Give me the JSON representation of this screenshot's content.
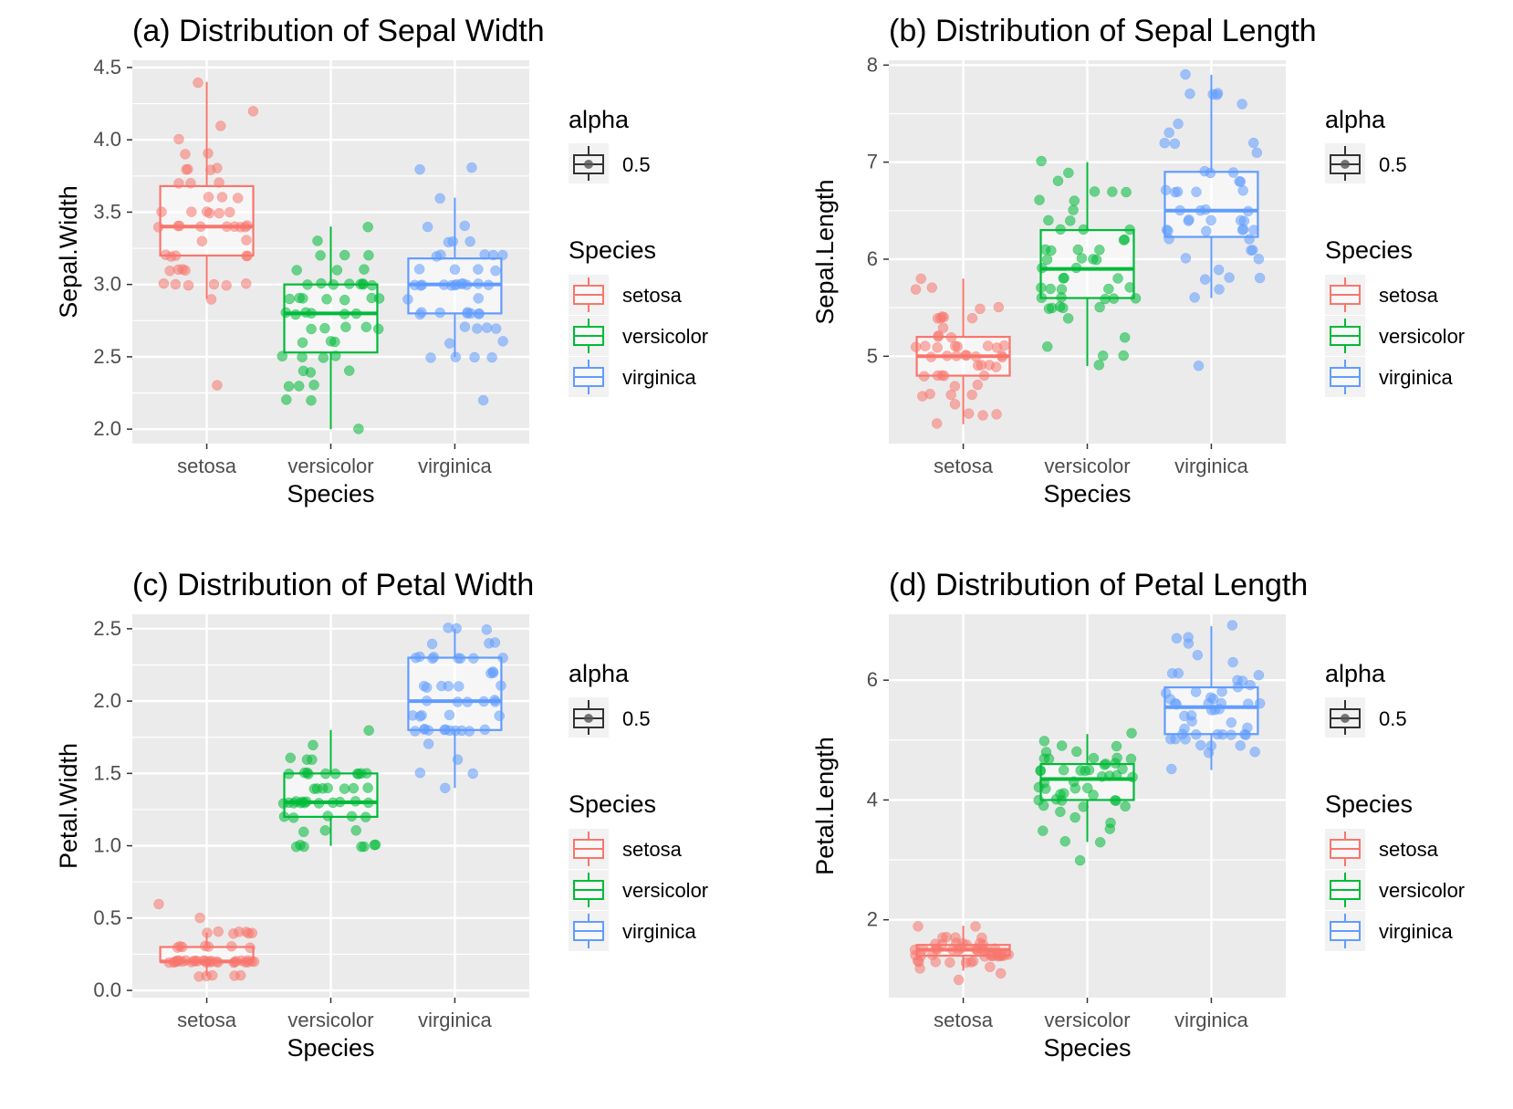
{
  "colors": {
    "setosa": "#F8766D",
    "versicolor": "#00BA38",
    "virginica": "#619CFF",
    "panel_bg": "#EBEBEB",
    "grid": "#FFFFFF"
  },
  "legend": {
    "alpha_title": "alpha",
    "alpha_value": "0.5",
    "species_title": "Species",
    "items": [
      "setosa",
      "versicolor",
      "virginica"
    ]
  },
  "chart_data": [
    {
      "type": "box",
      "title": "(a) Distribution of Sepal Width",
      "xlabel": "Species",
      "ylabel": "Sepal.Width",
      "categories": [
        "setosa",
        "versicolor",
        "virginica"
      ],
      "ylim": [
        1.9,
        4.55
      ],
      "yticks": [
        2.0,
        2.5,
        3.0,
        3.5,
        4.0,
        4.5
      ],
      "ytick_labels": [
        "2.0",
        "2.5",
        "3.0",
        "3.5",
        "4.0",
        "4.5"
      ],
      "grid": true,
      "legend_position": "right",
      "boxes": [
        {
          "species": "setosa",
          "q1": 3.2,
          "median": 3.4,
          "q3": 3.68,
          "whisker_low": 2.9,
          "whisker_high": 4.4
        },
        {
          "species": "versicolor",
          "q1": 2.53,
          "median": 2.8,
          "q3": 3.0,
          "whisker_low": 2.0,
          "whisker_high": 3.4
        },
        {
          "species": "virginica",
          "q1": 2.8,
          "median": 3.0,
          "q3": 3.18,
          "whisker_low": 2.5,
          "whisker_high": 3.6
        }
      ],
      "points": {
        "setosa": [
          3.5,
          3.0,
          3.2,
          3.1,
          3.6,
          3.9,
          3.4,
          3.4,
          2.9,
          3.1,
          3.7,
          3.4,
          3.0,
          3.0,
          4.0,
          4.4,
          3.9,
          3.5,
          3.8,
          3.8,
          3.4,
          3.7,
          3.6,
          3.3,
          3.4,
          3.0,
          3.4,
          3.5,
          3.4,
          3.2,
          3.1,
          3.4,
          4.1,
          4.2,
          3.1,
          3.2,
          3.5,
          3.6,
          3.0,
          3.4,
          3.5,
          2.3,
          3.2,
          3.5,
          3.8,
          3.0,
          3.8,
          3.2,
          3.7,
          3.3
        ],
        "versicolor": [
          3.2,
          3.2,
          3.1,
          2.3,
          2.8,
          2.8,
          3.3,
          2.4,
          2.9,
          2.7,
          2.0,
          3.0,
          2.2,
          2.9,
          2.9,
          3.1,
          3.0,
          2.7,
          2.2,
          2.5,
          3.2,
          2.8,
          2.5,
          2.8,
          2.9,
          3.0,
          2.8,
          3.0,
          2.9,
          2.6,
          2.4,
          2.4,
          2.7,
          2.7,
          3.0,
          3.4,
          3.1,
          2.3,
          3.0,
          2.5,
          2.6,
          3.0,
          2.6,
          2.3,
          2.7,
          3.0,
          2.9,
          2.9,
          2.5,
          2.8
        ],
        "virginica": [
          3.3,
          2.7,
          3.0,
          2.9,
          3.0,
          3.0,
          2.5,
          2.9,
          2.5,
          3.6,
          3.2,
          2.7,
          3.0,
          2.5,
          2.8,
          3.2,
          3.0,
          3.8,
          2.6,
          2.2,
          3.2,
          2.8,
          2.8,
          2.7,
          3.3,
          3.2,
          2.8,
          3.0,
          2.8,
          3.0,
          2.8,
          3.8,
          2.8,
          2.8,
          2.6,
          3.0,
          3.4,
          3.1,
          3.0,
          3.1,
          3.1,
          3.1,
          2.7,
          3.2,
          3.3,
          3.0,
          2.5,
          3.0,
          3.4,
          3.0
        ]
      }
    },
    {
      "type": "box",
      "title": "(b) Distribution of Sepal Length",
      "xlabel": "Species",
      "ylabel": "Sepal.Length",
      "categories": [
        "setosa",
        "versicolor",
        "virginica"
      ],
      "ylim": [
        4.1,
        8.05
      ],
      "yticks": [
        5,
        6,
        7,
        8
      ],
      "ytick_labels": [
        "5",
        "6",
        "7",
        "8"
      ],
      "grid": true,
      "legend_position": "right",
      "boxes": [
        {
          "species": "setosa",
          "q1": 4.8,
          "median": 5.0,
          "q3": 5.2,
          "whisker_low": 4.3,
          "whisker_high": 5.8
        },
        {
          "species": "versicolor",
          "q1": 5.6,
          "median": 5.9,
          "q3": 6.3,
          "whisker_low": 4.9,
          "whisker_high": 7.0
        },
        {
          "species": "virginica",
          "q1": 6.23,
          "median": 6.5,
          "q3": 6.9,
          "whisker_low": 5.6,
          "whisker_high": 7.9
        }
      ],
      "points": {
        "setosa": [
          5.1,
          4.9,
          4.7,
          4.6,
          5.0,
          5.4,
          4.6,
          5.0,
          4.4,
          4.9,
          5.4,
          4.8,
          4.8,
          4.3,
          5.8,
          5.7,
          5.4,
          5.1,
          5.7,
          5.1,
          5.4,
          5.1,
          4.6,
          5.1,
          4.8,
          5.0,
          5.0,
          5.2,
          5.2,
          4.7,
          4.8,
          5.4,
          5.2,
          5.5,
          4.9,
          5.0,
          5.5,
          4.9,
          4.4,
          5.1,
          5.0,
          4.5,
          4.4,
          5.0,
          5.1,
          4.8,
          5.1,
          4.6,
          5.3,
          5.0
        ],
        "versicolor": [
          7.0,
          6.4,
          6.9,
          5.5,
          6.5,
          5.7,
          6.3,
          4.9,
          6.6,
          5.2,
          5.0,
          5.9,
          6.0,
          6.1,
          5.6,
          6.7,
          5.6,
          5.8,
          6.2,
          5.6,
          5.9,
          6.1,
          6.3,
          6.1,
          6.4,
          6.6,
          6.8,
          6.7,
          6.0,
          5.7,
          5.5,
          5.5,
          5.8,
          6.0,
          5.4,
          6.0,
          6.7,
          6.3,
          5.6,
          5.5,
          5.5,
          6.1,
          5.8,
          5.0,
          5.6,
          5.7,
          5.7,
          6.2,
          5.1,
          5.7
        ],
        "virginica": [
          6.3,
          5.8,
          7.1,
          6.3,
          6.5,
          7.6,
          4.9,
          7.3,
          6.7,
          7.2,
          6.5,
          6.4,
          6.8,
          5.7,
          5.8,
          6.4,
          6.5,
          7.7,
          7.7,
          6.0,
          6.9,
          5.6,
          7.7,
          6.3,
          6.7,
          7.2,
          6.2,
          6.1,
          6.4,
          7.2,
          7.4,
          7.9,
          6.4,
          6.3,
          6.1,
          7.7,
          6.3,
          6.4,
          6.0,
          6.9,
          6.7,
          6.9,
          5.8,
          6.8,
          6.7,
          6.7,
          6.3,
          6.5,
          6.2,
          5.9
        ]
      }
    },
    {
      "type": "box",
      "title": "(c) Distribution of Petal Width",
      "xlabel": "Species",
      "ylabel": "Petal.Width",
      "categories": [
        "setosa",
        "versicolor",
        "virginica"
      ],
      "ylim": [
        -0.05,
        2.6
      ],
      "yticks": [
        0.0,
        0.5,
        1.0,
        1.5,
        2.0,
        2.5
      ],
      "ytick_labels": [
        "0.0",
        "0.5",
        "1.0",
        "1.5",
        "2.0",
        "2.5"
      ],
      "grid": true,
      "legend_position": "right",
      "boxes": [
        {
          "species": "setosa",
          "q1": 0.2,
          "median": 0.2,
          "q3": 0.3,
          "whisker_low": 0.1,
          "whisker_high": 0.4
        },
        {
          "species": "versicolor",
          "q1": 1.2,
          "median": 1.3,
          "q3": 1.5,
          "whisker_low": 1.0,
          "whisker_high": 1.8
        },
        {
          "species": "virginica",
          "q1": 1.8,
          "median": 2.0,
          "q3": 2.3,
          "whisker_low": 1.4,
          "whisker_high": 2.5
        }
      ],
      "points": {
        "setosa": [
          0.2,
          0.2,
          0.2,
          0.2,
          0.2,
          0.4,
          0.3,
          0.2,
          0.2,
          0.1,
          0.2,
          0.2,
          0.1,
          0.1,
          0.2,
          0.4,
          0.4,
          0.3,
          0.3,
          0.3,
          0.2,
          0.4,
          0.2,
          0.5,
          0.2,
          0.2,
          0.4,
          0.2,
          0.2,
          0.2,
          0.2,
          0.4,
          0.1,
          0.2,
          0.2,
          0.2,
          0.2,
          0.1,
          0.2,
          0.2,
          0.3,
          0.3,
          0.2,
          0.6,
          0.4,
          0.3,
          0.2,
          0.2,
          0.2,
          0.2
        ],
        "versicolor": [
          1.4,
          1.5,
          1.5,
          1.3,
          1.5,
          1.3,
          1.6,
          1.0,
          1.3,
          1.4,
          1.0,
          1.5,
          1.0,
          1.4,
          1.3,
          1.4,
          1.5,
          1.0,
          1.5,
          1.1,
          1.8,
          1.3,
          1.5,
          1.2,
          1.3,
          1.4,
          1.4,
          1.7,
          1.5,
          1.0,
          1.1,
          1.0,
          1.2,
          1.6,
          1.5,
          1.6,
          1.5,
          1.3,
          1.3,
          1.3,
          1.2,
          1.4,
          1.2,
          1.0,
          1.3,
          1.2,
          1.3,
          1.3,
          1.1,
          1.3
        ],
        "virginica": [
          2.5,
          1.9,
          2.1,
          1.8,
          2.2,
          2.1,
          1.7,
          1.8,
          1.8,
          2.5,
          2.0,
          1.9,
          2.1,
          2.0,
          2.4,
          2.3,
          1.8,
          2.2,
          2.3,
          1.5,
          2.3,
          2.0,
          2.0,
          1.8,
          2.1,
          1.8,
          1.8,
          1.8,
          2.1,
          1.6,
          1.9,
          2.0,
          2.2,
          1.5,
          1.4,
          2.3,
          2.4,
          1.8,
          1.8,
          2.1,
          2.4,
          2.3,
          1.9,
          2.3,
          2.5,
          2.3,
          1.9,
          2.0,
          2.3,
          1.8
        ]
      }
    },
    {
      "type": "box",
      "title": "(d) Distribution of Petal Length",
      "xlabel": "Species",
      "ylabel": "Petal.Length",
      "categories": [
        "setosa",
        "versicolor",
        "virginica"
      ],
      "ylim": [
        0.7,
        7.1
      ],
      "yticks": [
        2,
        4,
        6
      ],
      "ytick_labels": [
        "2",
        "4",
        "6"
      ],
      "grid": true,
      "legend_position": "right",
      "boxes": [
        {
          "species": "setosa",
          "q1": 1.4,
          "median": 1.5,
          "q3": 1.58,
          "whisker_low": 1.15,
          "whisker_high": 1.9
        },
        {
          "species": "versicolor",
          "q1": 4.0,
          "median": 4.35,
          "q3": 4.6,
          "whisker_low": 3.3,
          "whisker_high": 5.1
        },
        {
          "species": "virginica",
          "q1": 5.1,
          "median": 5.55,
          "q3": 5.88,
          "whisker_low": 4.5,
          "whisker_high": 6.9
        }
      ],
      "points": {
        "setosa": [
          1.4,
          1.4,
          1.3,
          1.5,
          1.4,
          1.7,
          1.4,
          1.5,
          1.4,
          1.5,
          1.5,
          1.6,
          1.4,
          1.1,
          1.2,
          1.5,
          1.3,
          1.4,
          1.7,
          1.5,
          1.7,
          1.5,
          1.0,
          1.7,
          1.9,
          1.6,
          1.6,
          1.5,
          1.4,
          1.6,
          1.6,
          1.5,
          1.5,
          1.4,
          1.5,
          1.2,
          1.3,
          1.4,
          1.3,
          1.5,
          1.3,
          1.3,
          1.3,
          1.6,
          1.9,
          1.4,
          1.6,
          1.4,
          1.5,
          1.4
        ],
        "versicolor": [
          4.7,
          4.5,
          4.9,
          4.0,
          4.6,
          4.5,
          4.7,
          3.3,
          4.6,
          3.9,
          3.5,
          4.2,
          4.0,
          4.7,
          3.6,
          4.4,
          4.5,
          4.1,
          4.5,
          3.9,
          4.8,
          4.0,
          4.9,
          4.7,
          4.3,
          4.4,
          4.8,
          5.0,
          4.5,
          3.5,
          3.8,
          3.7,
          3.9,
          5.1,
          4.5,
          4.5,
          4.7,
          4.4,
          4.1,
          4.0,
          4.4,
          4.6,
          4.0,
          3.3,
          4.2,
          4.2,
          4.2,
          4.3,
          3.0,
          4.1
        ],
        "virginica": [
          6.0,
          5.1,
          5.9,
          5.6,
          5.8,
          6.6,
          4.5,
          6.3,
          5.8,
          6.1,
          5.1,
          5.3,
          5.5,
          5.0,
          5.1,
          5.3,
          5.5,
          6.7,
          6.9,
          5.0,
          5.7,
          4.9,
          6.7,
          4.9,
          5.7,
          6.0,
          4.8,
          4.9,
          5.6,
          5.8,
          6.1,
          6.4,
          5.6,
          5.1,
          5.6,
          6.1,
          5.6,
          5.5,
          4.8,
          5.4,
          5.6,
          5.1,
          5.1,
          5.9,
          5.7,
          5.2,
          5.0,
          5.2,
          5.4,
          5.1
        ]
      }
    }
  ]
}
